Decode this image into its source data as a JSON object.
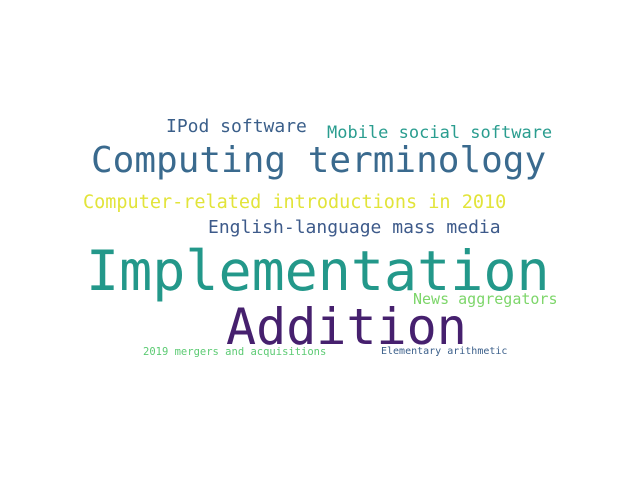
{
  "words": [
    {
      "id": "ipod",
      "text": "IPod software",
      "color": "#3b5f8a"
    },
    {
      "id": "mobile",
      "text": "Mobile social software",
      "color": "#2a9d8f"
    },
    {
      "id": "computing",
      "text": "Computing terminology",
      "color": "#3a6a8e"
    },
    {
      "id": "intro",
      "text": "Computer-related introductions in 2010",
      "color": "#e2e43a"
    },
    {
      "id": "english",
      "text": "English-language mass media",
      "color": "#3d5a8a"
    },
    {
      "id": "impl",
      "text": "Implementation",
      "color": "#23988a"
    },
    {
      "id": "news",
      "text": "News aggregators",
      "color": "#7dd66a"
    },
    {
      "id": "addition",
      "text": "Addition",
      "color": "#46206e"
    },
    {
      "id": "mergers",
      "text": "2019 mergers and acquisitions",
      "color": "#5ccb73"
    },
    {
      "id": "elem",
      "text": "Elementary arithmetic",
      "color": "#3b5f8a"
    }
  ]
}
